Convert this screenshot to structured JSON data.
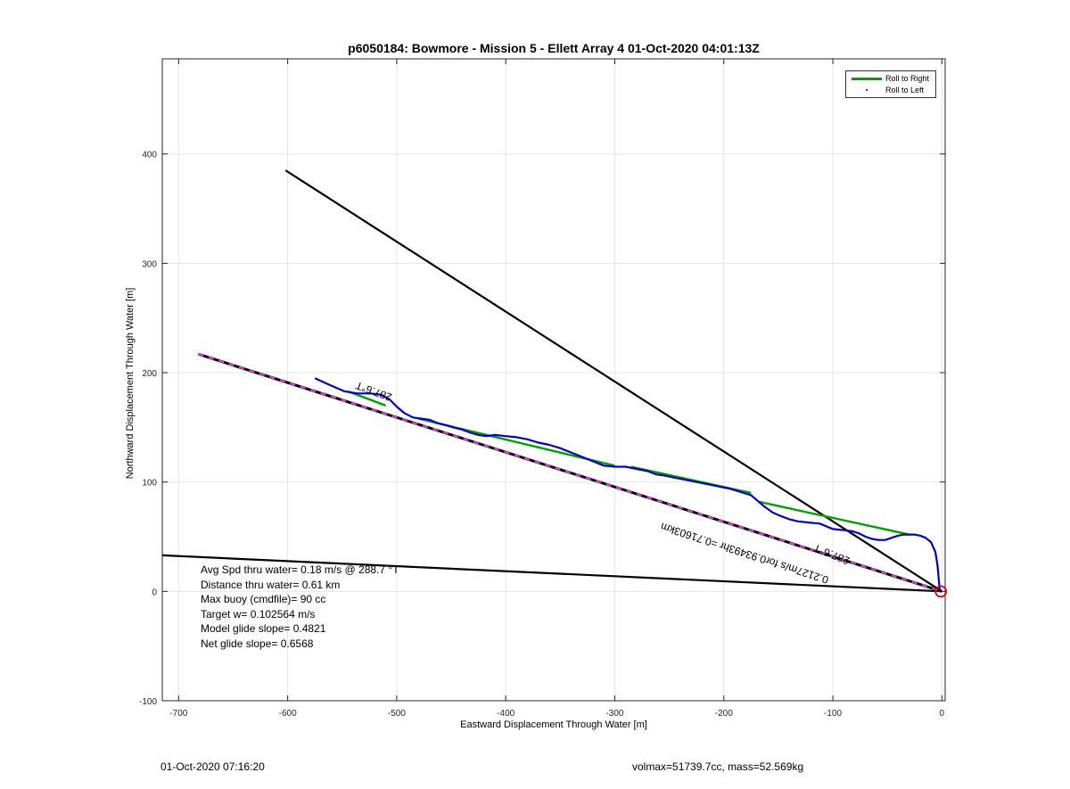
{
  "chart_data": {
    "type": "line",
    "title": "p6050184: Bowmore - Mission 5 - Ellett Array 4 01-Oct-2020 04:01:13Z",
    "xlabel": "Eastward Displacement Through Water [m]",
    "ylabel": "Northward Displacement Through Water [m]",
    "xlim": [
      -715,
      3
    ],
    "ylim": [
      -100,
      487
    ],
    "xticks": [
      -700,
      -600,
      -500,
      -400,
      -300,
      -200,
      -100,
      0
    ],
    "yticks": [
      -100,
      0,
      100,
      200,
      300,
      400
    ],
    "grid": true,
    "legend": {
      "location": "top-right",
      "entries": [
        {
          "label": "Roll to Right",
          "color": "#00a000",
          "style": "line"
        },
        {
          "label": "Roll to Left",
          "color": "#ff0000",
          "style": "dot"
        }
      ]
    },
    "series": [
      {
        "color": "#0000c0",
        "role": "track",
        "x": [
          -575,
          -562,
          -548,
          -536,
          -524,
          -515,
          -507,
          -500,
          -493,
          -485,
          -478,
          -470,
          -463,
          -455,
          -448,
          -440,
          -432,
          -425,
          -418,
          -410,
          -400,
          -390,
          -380,
          -370,
          -360,
          -350,
          -340,
          -330,
          -320,
          -310,
          -300,
          -290,
          -280,
          -270,
          -262,
          -255,
          -245,
          -235,
          -225,
          -215,
          -205,
          -195,
          -185,
          -175,
          -168,
          -162,
          -155,
          -148,
          -140,
          -132,
          -122,
          -112,
          -100,
          -90,
          -82,
          -76,
          -70,
          -64,
          -58,
          -52,
          -46,
          -40,
          -35,
          -30,
          -25,
          -20,
          -15,
          -10,
          -6,
          -4,
          -3,
          -2
        ],
        "y": [
          195,
          189,
          183,
          181,
          181,
          180,
          176,
          169,
          163,
          159,
          158,
          157,
          154,
          152,
          150,
          148,
          145,
          143,
          142,
          143,
          142,
          141,
          139,
          136,
          134,
          131,
          127,
          123,
          119,
          115,
          114,
          114,
          112,
          110,
          107,
          106,
          104,
          102,
          100,
          98,
          96,
          94,
          91,
          88,
          82,
          77,
          72,
          69,
          66,
          64,
          63,
          62,
          57,
          56,
          55,
          53,
          50,
          48,
          47,
          47,
          49,
          51,
          52,
          52,
          52,
          51,
          49,
          45,
          36,
          24,
          12,
          2
        ]
      },
      {
        "color": "#00a000",
        "role": "roll-right-segments",
        "segments": [
          [
            [
              -545,
              183
            ],
            [
              -510,
              170
            ]
          ],
          [
            [
              -480,
              158
            ],
            [
              -300,
              115
            ]
          ],
          [
            [
              -285,
              114
            ],
            [
              -175,
              90
            ]
          ],
          [
            [
              -168,
              82
            ],
            [
              -30,
              52
            ]
          ]
        ]
      },
      {
        "color": "#000000",
        "role": "heading-line",
        "x": [
          -602,
          0
        ],
        "y": [
          385,
          0
        ]
      },
      {
        "color": "#000000",
        "role": "heading-line",
        "x": [
          -715,
          0
        ],
        "y": [
          33,
          0
        ]
      },
      {
        "color": "#000000",
        "role": "depth-average-current",
        "dashColor": "#e040e0",
        "x": [
          -682,
          0
        ],
        "y": [
          217,
          0
        ]
      }
    ],
    "annotations": [
      {
        "text": "287.6°T",
        "x": -520,
        "y": 186,
        "rotation": 200
      },
      {
        "text": "287.6°T",
        "x": -100,
        "y": 37,
        "rotation": 202
      },
      {
        "text": "0.2127m/s for0.93493hr =0.71603km",
        "x": -180,
        "y": 38,
        "rotation": 198
      }
    ],
    "marker": {
      "type": "circle",
      "x": -1,
      "y": 0,
      "color": "#e00000"
    }
  },
  "stats": [
    "Avg Spd thru water=  0.18 m/s @ 288.7 °T",
    "Distance thru water=  0.61 km",
    "Max buoy (cmdfile)= 90 cc",
    "Target w= 0.102564 m/s",
    "Model glide slope= 0.4821",
    "Net glide slope= 0.6568"
  ],
  "footer": {
    "timestamp": "01-Oct-2020 07:16:20",
    "vehicle": "volmax=51739.7cc, mass=52.569kg"
  }
}
